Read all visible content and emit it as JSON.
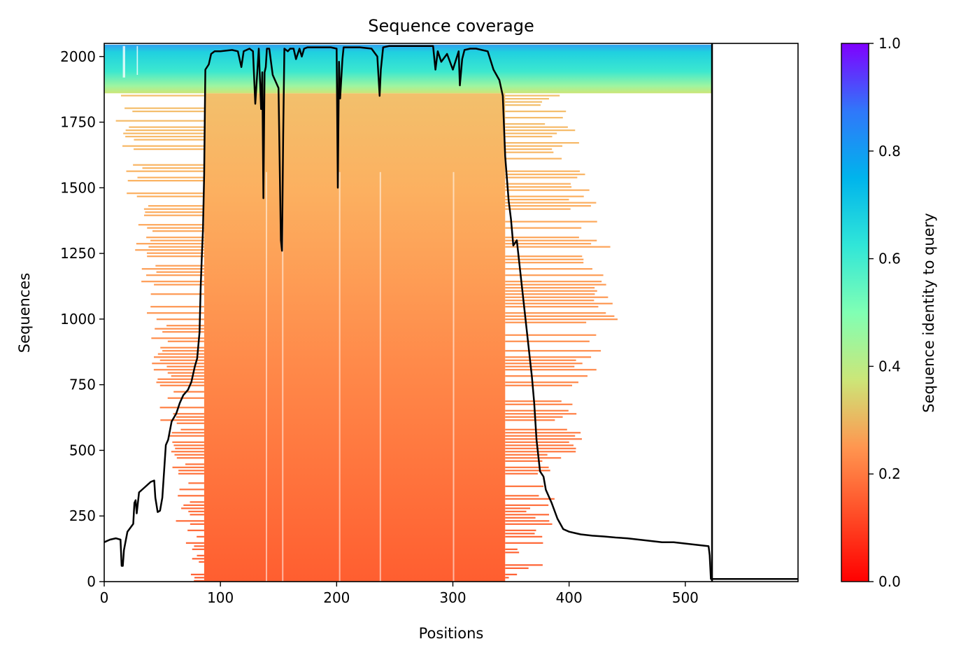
{
  "chart_data": {
    "type": "heatmap",
    "title": "Sequence coverage",
    "xlabel": "Positions",
    "ylabel": "Sequences",
    "xlim": [
      0,
      597
    ],
    "ylim": [
      0,
      2050
    ],
    "x_ticks": [
      "0",
      "100",
      "200",
      "300",
      "400",
      "500"
    ],
    "y_ticks": [
      "0",
      "250",
      "500",
      "750",
      "1000",
      "1250",
      "1500",
      "1750",
      "2000"
    ],
    "query_length": 523,
    "colorbar": {
      "label": "Sequence identity to query",
      "colormap": "rainbow_r",
      "range": [
        0,
        1
      ],
      "ticks": [
        "0.0",
        "0.2",
        "0.4",
        "0.6",
        "0.8",
        "1.0"
      ]
    },
    "series": [
      {
        "type": "line",
        "color": "#000000",
        "x": [
          0,
          5,
          10,
          14,
          15,
          16,
          17,
          20,
          25,
          26,
          27,
          28,
          30,
          35,
          40,
          43,
          44,
          46,
          48,
          50,
          53,
          55,
          58,
          62,
          65,
          68,
          72,
          75,
          78,
          80,
          82,
          83,
          84,
          85,
          86,
          87,
          90,
          92,
          95,
          100,
          110,
          115,
          118,
          120,
          125,
          128,
          130,
          133,
          135,
          136,
          137,
          138,
          139,
          140,
          142,
          145,
          150,
          152,
          153,
          154,
          155,
          158,
          160,
          163,
          165,
          168,
          170,
          172,
          175,
          180,
          185,
          190,
          195,
          200,
          201,
          202,
          203,
          205,
          206,
          210,
          220,
          230,
          235,
          237,
          238,
          240,
          245,
          260,
          280,
          283,
          285,
          287,
          290,
          295,
          300,
          305,
          306,
          308,
          310,
          315,
          320,
          330,
          335,
          340,
          343,
          345,
          348,
          350,
          352,
          355,
          360,
          365,
          368,
          370,
          372,
          375,
          378,
          380,
          385,
          390,
          395,
          400,
          405,
          410,
          420,
          430,
          440,
          450,
          460,
          470,
          480,
          490,
          500,
          510,
          520,
          521,
          522,
          523
        ],
        "y": [
          150,
          160,
          165,
          160,
          60,
          60,
          120,
          190,
          220,
          300,
          310,
          260,
          340,
          360,
          380,
          385,
          320,
          265,
          270,
          320,
          520,
          540,
          610,
          640,
          680,
          710,
          730,
          760,
          820,
          850,
          950,
          1120,
          1240,
          1340,
          1550,
          1950,
          1970,
          2010,
          2020,
          2020,
          2025,
          2020,
          1960,
          2020,
          2030,
          2020,
          1820,
          2030,
          1800,
          1940,
          1460,
          1940,
          1960,
          2030,
          2030,
          1930,
          1880,
          1300,
          1260,
          1700,
          2030,
          2020,
          2030,
          2030,
          1990,
          2030,
          2000,
          2030,
          2035,
          2035,
          2035,
          2035,
          2035,
          2030,
          1500,
          1980,
          1840,
          1990,
          2035,
          2035,
          2035,
          2030,
          2000,
          1850,
          1950,
          2035,
          2040,
          2040,
          2040,
          2040,
          1950,
          2020,
          1980,
          2010,
          1950,
          2020,
          1890,
          1990,
          2025,
          2030,
          2030,
          2020,
          1950,
          1910,
          1850,
          1620,
          1450,
          1380,
          1280,
          1300,
          1100,
          900,
          780,
          680,
          540,
          420,
          400,
          350,
          300,
          240,
          200,
          190,
          185,
          180,
          175,
          172,
          168,
          165,
          160,
          155,
          150,
          150,
          145,
          140,
          135,
          100,
          10,
          10
        ]
      }
    ]
  }
}
